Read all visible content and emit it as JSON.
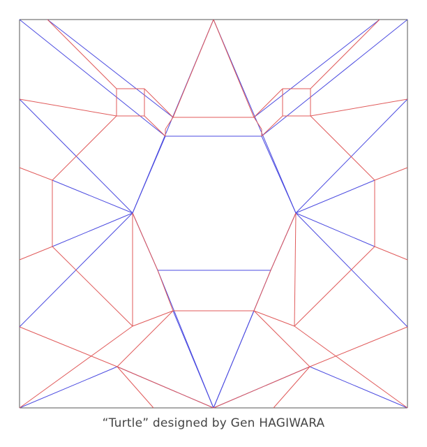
{
  "diagram": {
    "type": "origami-crease-pattern",
    "caption": "“Turtle” designed by Gen HAGIWARA",
    "colors": {
      "mountain": "#e05a5a",
      "valley": "#4a4ae0",
      "border": "#555555"
    }
  }
}
